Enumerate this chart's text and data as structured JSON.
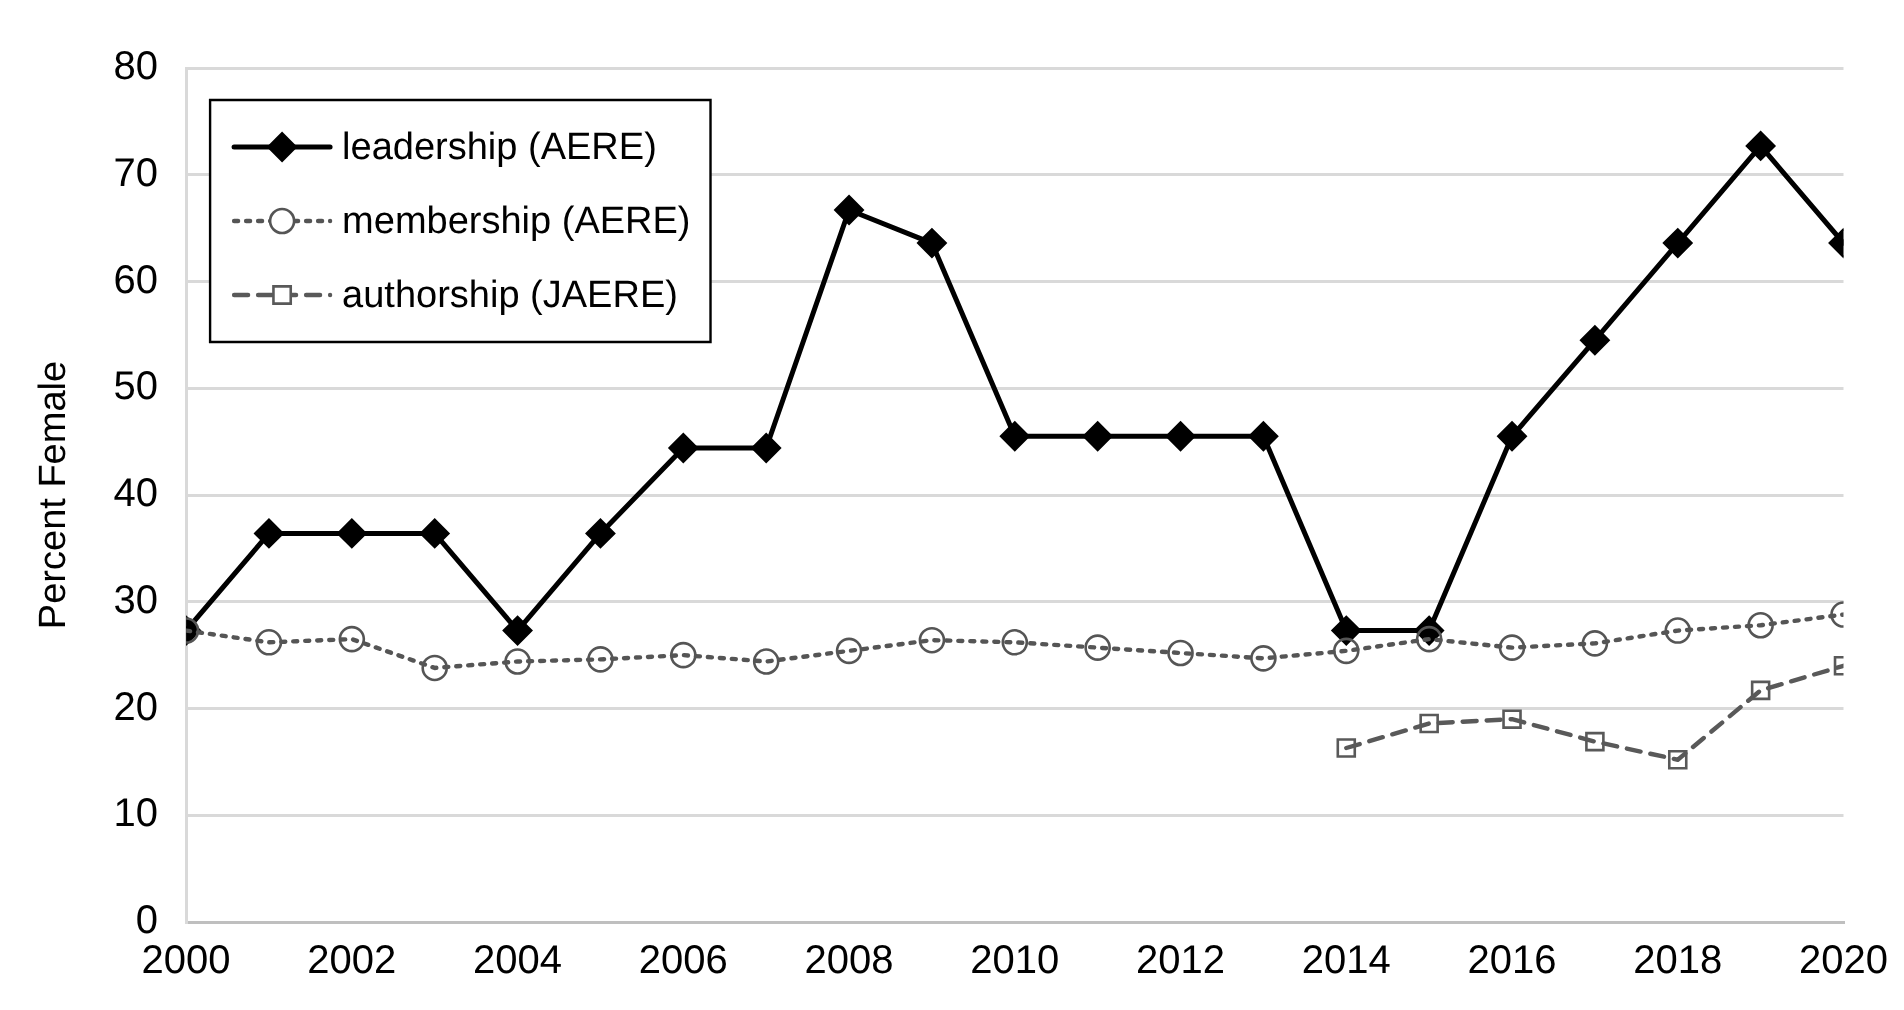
{
  "chart_data": {
    "type": "line",
    "ylabel": "Percent Female",
    "x": [
      2000,
      2001,
      2002,
      2003,
      2004,
      2005,
      2006,
      2007,
      2008,
      2009,
      2010,
      2011,
      2012,
      2013,
      2014,
      2015,
      2016,
      2017,
      2018,
      2019,
      2020
    ],
    "xlim": [
      2000,
      2020
    ],
    "xticks": [
      2000,
      2002,
      2004,
      2006,
      2008,
      2010,
      2012,
      2014,
      2016,
      2018,
      2020
    ],
    "ylim": [
      0,
      80
    ],
    "yticks": [
      0,
      10,
      20,
      30,
      40,
      50,
      60,
      70,
      80
    ],
    "grid": "y",
    "legend": "top left",
    "series": [
      {
        "name": "leadership (AERE)",
        "color": "#000000",
        "marker": "diamond",
        "line_style": "solid",
        "values": [
          27.3,
          36.4,
          36.4,
          36.4,
          27.3,
          36.4,
          44.4,
          44.4,
          66.7,
          63.6,
          45.5,
          45.5,
          45.5,
          45.5,
          27.3,
          27.3,
          45.5,
          54.5,
          63.6,
          72.7,
          63.6
        ]
      },
      {
        "name": "membership (AERE)",
        "color": "#555555",
        "marker": "circle",
        "line_style": "dotted",
        "values": [
          27.3,
          26.2,
          26.5,
          23.8,
          24.4,
          24.6,
          25.0,
          24.4,
          25.4,
          26.4,
          26.2,
          25.7,
          25.2,
          24.7,
          25.4,
          26.5,
          25.7,
          26.1,
          27.3,
          27.8,
          28.8
        ]
      },
      {
        "name": "authorship (JAERE)",
        "color": "#595959",
        "marker": "square",
        "line_style": "dashed",
        "x": [
          2014,
          2015,
          2016,
          2017,
          2018,
          2019,
          2020
        ],
        "values": [
          16.3,
          18.6,
          19.0,
          16.9,
          15.2,
          21.7,
          24.0
        ]
      }
    ]
  }
}
